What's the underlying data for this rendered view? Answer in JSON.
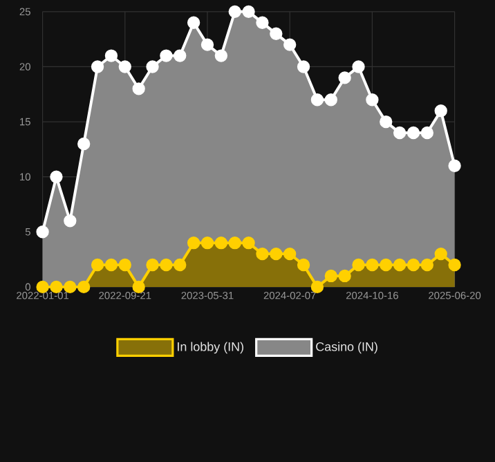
{
  "chart_data": {
    "type": "area",
    "categories": [
      "2022-01-01",
      null,
      null,
      null,
      null,
      null,
      "2022-09-21",
      null,
      null,
      null,
      null,
      null,
      "2023-05-31",
      null,
      null,
      null,
      null,
      null,
      "2024-02-07",
      null,
      null,
      null,
      null,
      null,
      "2024-10-16",
      null,
      null,
      null,
      null,
      null,
      "2025-06-20"
    ],
    "series": [
      {
        "name": "In lobby (IN)",
        "color": "#ffd000",
        "values": [
          0,
          0,
          0,
          0,
          2,
          2,
          2,
          0,
          2,
          2,
          2,
          4,
          4,
          4,
          4,
          4,
          3,
          3,
          3,
          2,
          0,
          1,
          1,
          2,
          2,
          2,
          2,
          2,
          2,
          3,
          2
        ]
      },
      {
        "name": "Casino (IN)",
        "color": "#ffffff",
        "values": [
          5,
          10,
          6,
          13,
          20,
          21,
          20,
          18,
          20,
          21,
          21,
          24,
          22,
          21,
          25,
          25,
          24,
          23,
          22,
          20,
          17,
          17,
          19,
          20,
          17,
          15,
          14,
          14,
          14,
          16,
          11
        ]
      }
    ],
    "ylim": [
      0,
      25
    ],
    "yticks": [
      0,
      5,
      10,
      15,
      20,
      25
    ],
    "grid": true,
    "legend": "bottom",
    "marker": "circle",
    "line_style": "solid"
  }
}
